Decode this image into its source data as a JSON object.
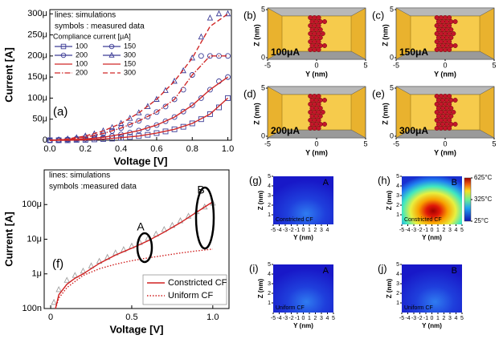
{
  "chart_data": [
    {
      "type": "line",
      "xlabel": "Voltage [V]",
      "ylabel": "Current [A]",
      "panel_label": "(a)",
      "notes": [
        "lines: simulations",
        "symbols : measured data"
      ],
      "legend_title": "Compliance current [μA]",
      "xlim": [
        0,
        1.02
      ],
      "xticks": [
        {
          "value": 0,
          "label": "0.0"
        },
        0.2,
        0.4,
        0.6,
        0.8,
        {
          "value": 1,
          "label": "1.0"
        }
      ],
      "ylim": [
        0,
        0.00031
      ],
      "yticks": [
        0,
        {
          "value": 5e-05,
          "label": "50μ"
        },
        {
          "value": 0.0001,
          "label": "100μ"
        },
        {
          "value": 0.00015,
          "label": "150μ"
        },
        {
          "value": 0.0002,
          "label": "200μ"
        },
        {
          "value": 0.00025,
          "label": "250μ"
        },
        {
          "value": 0.0003,
          "label": "300μ"
        }
      ],
      "series": [
        {
          "name": "100",
          "color": "#3c3c96",
          "style": "marker",
          "marker": "square",
          "x": [
            0,
            0.05,
            0.1,
            0.15,
            0.2,
            0.25,
            0.3,
            0.35,
            0.4,
            0.45,
            0.5,
            0.55,
            0.6,
            0.65,
            0.7,
            0.75,
            0.8,
            0.85,
            0.9,
            0.95,
            1.0
          ],
          "values": [
            0,
            0,
            0,
            1e-06,
            1e-06,
            2e-06,
            3e-06,
            4e-06,
            6e-06,
            8e-06,
            1e-05,
            1.3e-05,
            1.7e-05,
            2.1e-05,
            2.6e-05,
            3.2e-05,
            4e-05,
            5e-05,
            6.2e-05,
            7.8e-05,
            0.0001
          ]
        },
        {
          "name": "150",
          "color": "#3c3c96",
          "style": "marker",
          "marker": "circle",
          "x": [
            0,
            0.05,
            0.1,
            0.15,
            0.2,
            0.25,
            0.3,
            0.35,
            0.4,
            0.45,
            0.5,
            0.55,
            0.6,
            0.65,
            0.7,
            0.75,
            0.8,
            0.85,
            0.9,
            0.95,
            1.0
          ],
          "values": [
            0,
            0,
            1e-06,
            2e-06,
            3e-06,
            5e-06,
            7e-06,
            1e-05,
            1.4e-05,
            1.8e-05,
            2.3e-05,
            2.9e-05,
            3.6e-05,
            4.5e-05,
            5.5e-05,
            6.8e-05,
            8.3e-05,
            0.0001,
            0.00012,
            0.00014,
            0.00015
          ]
        },
        {
          "name": "200",
          "color": "#3c3c96",
          "style": "marker",
          "marker": "circle",
          "x": [
            0,
            0.05,
            0.1,
            0.15,
            0.2,
            0.25,
            0.3,
            0.35,
            0.4,
            0.45,
            0.5,
            0.55,
            0.6,
            0.65,
            0.7,
            0.75,
            0.8,
            0.85,
            0.9,
            0.95,
            1.0
          ],
          "values": [
            0,
            1e-06,
            2e-06,
            4e-06,
            7e-06,
            1.1e-05,
            1.6e-05,
            2.2e-05,
            2.9e-05,
            3.7e-05,
            4.6e-05,
            5.6e-05,
            6.7e-05,
            8e-05,
            9.7e-05,
            0.00012,
            0.000155,
            0.0002,
            0.0002,
            0.0002,
            0.0002
          ]
        },
        {
          "name": "300",
          "color": "#3c3c96",
          "style": "marker",
          "marker": "triangle",
          "x": [
            0,
            0.05,
            0.1,
            0.15,
            0.2,
            0.25,
            0.3,
            0.35,
            0.4,
            0.45,
            0.5,
            0.55,
            0.6,
            0.65,
            0.7,
            0.75,
            0.8,
            0.85,
            0.9,
            0.95,
            1.0
          ],
          "values": [
            0,
            1e-06,
            3e-06,
            6e-06,
            1e-05,
            1.5e-05,
            2.2e-05,
            3e-05,
            4e-05,
            5.2e-05,
            6.5e-05,
            8e-05,
            9.7e-05,
            0.000118,
            0.00014,
            0.000165,
            0.000195,
            0.000245,
            0.00029,
            0.0003,
            0.0003
          ]
        },
        {
          "name": "100",
          "color": "#d02828",
          "style": "solid",
          "x": [
            0,
            0.1,
            0.2,
            0.3,
            0.4,
            0.5,
            0.6,
            0.7,
            0.8,
            0.9,
            1.0
          ],
          "values": [
            0,
            0,
            1e-06,
            3e-06,
            6e-06,
            1e-05,
            1.7e-05,
            2.6e-05,
            4e-05,
            6.2e-05,
            0.0001
          ]
        },
        {
          "name": "150",
          "color": "#d02828",
          "style": "solid",
          "x": [
            0,
            0.1,
            0.2,
            0.3,
            0.4,
            0.5,
            0.6,
            0.7,
            0.8,
            0.9,
            1.0
          ],
          "values": [
            0,
            1e-06,
            3e-06,
            7e-06,
            1.4e-05,
            2.3e-05,
            3.6e-05,
            5.5e-05,
            8.3e-05,
            0.00012,
            0.00015
          ]
        },
        {
          "name": "200",
          "color": "#d02828",
          "style": "dashdot",
          "x": [
            0,
            0.1,
            0.2,
            0.3,
            0.4,
            0.5,
            0.6,
            0.7,
            0.8,
            0.9,
            1.0
          ],
          "values": [
            0,
            2e-06,
            7e-06,
            1.6e-05,
            2.9e-05,
            4.6e-05,
            6.7e-05,
            9.7e-05,
            0.000155,
            0.0002,
            0.0002
          ]
        },
        {
          "name": "300",
          "color": "#d02828",
          "style": "dash",
          "x": [
            0,
            0.1,
            0.2,
            0.3,
            0.4,
            0.5,
            0.6,
            0.7,
            0.8,
            0.9,
            1.0
          ],
          "values": [
            0,
            3e-06,
            1e-05,
            2.2e-05,
            4e-05,
            6.5e-05,
            9.7e-05,
            0.00014,
            0.000195,
            0.00027,
            0.0003
          ]
        }
      ]
    },
    {
      "type": "line",
      "log_y": true,
      "xlabel": "Voltage [V]",
      "ylabel": "Current [A]",
      "panel_label": "(f)",
      "notes": [
        "lines: simulations",
        "symbols :measured data"
      ],
      "callouts": [
        "A",
        "B"
      ],
      "xlim": [
        -0.04,
        1.1
      ],
      "xticks": [
        0,
        0.5,
        {
          "value": 1,
          "label": "1.0"
        }
      ],
      "ylim": [
        1e-07,
        0.001
      ],
      "yticks": [
        {
          "value": 1e-07,
          "label": "100n"
        },
        {
          "value": 1e-06,
          "label": "1μ"
        },
        {
          "value": 1e-05,
          "label": "10μ"
        },
        {
          "value": 0.0001,
          "label": "100μ"
        }
      ],
      "series": [
        {
          "color": "#a0a0a0",
          "style": "marker",
          "marker": "triangle",
          "x": [
            0.02,
            0.05,
            0.1,
            0.15,
            0.2,
            0.25,
            0.3,
            0.35,
            0.4,
            0.45,
            0.5,
            0.55,
            0.6,
            0.65,
            0.7,
            0.75,
            0.8,
            0.85,
            0.9,
            0.95,
            1.0
          ],
          "values": [
            1.5e-07,
            3.5e-07,
            6.5e-07,
            9e-07,
            1.2e-06,
            1.7e-06,
            2.3e-06,
            3e-06,
            4e-06,
            5e-06,
            6.3e-06,
            8e-06,
            1.05e-05,
            1.4e-05,
            1.9e-05,
            2.5e-05,
            3.4e-05,
            4.6e-05,
            6.2e-05,
            8.5e-05,
            0.00011
          ]
        },
        {
          "name": "Constricted CF",
          "color": "#d02020",
          "style": "solid",
          "x": [
            0.03,
            0.05,
            0.1,
            0.15,
            0.2,
            0.3,
            0.4,
            0.5,
            0.6,
            0.7,
            0.8,
            0.9,
            1.0
          ],
          "values": [
            1e-07,
            2.5e-07,
            5e-07,
            7.5e-07,
            1e-06,
            2e-06,
            3.5e-06,
            5.5e-06,
            9e-06,
            1.6e-05,
            3e-05,
            6e-05,
            0.00012
          ]
        },
        {
          "name": "Uniform CF",
          "color": "#d02020",
          "style": "dot",
          "x": [
            0.03,
            0.05,
            0.1,
            0.15,
            0.2,
            0.3,
            0.4,
            0.5,
            0.6,
            0.7,
            0.8,
            0.9,
            1.0
          ],
          "values": [
            1e-07,
            2e-07,
            4e-07,
            6e-07,
            9e-07,
            1.4e-06,
            1.9e-06,
            2.4e-06,
            2.9e-06,
            3.4e-06,
            4e-06,
            4.6e-06,
            5.2e-06
          ]
        }
      ]
    },
    {
      "type": "image",
      "panel_label": "(b)",
      "annotation": "100μA",
      "xlabel": "Y (nm)",
      "ylabel": "Z (nm)",
      "xlim": [
        -5,
        5
      ],
      "xticks": [
        -5,
        0,
        5
      ],
      "ylim": [
        0,
        5
      ],
      "yticks": [
        0,
        5
      ]
    },
    {
      "type": "image",
      "panel_label": "(c)",
      "annotation": "150μA",
      "xlabel": "Y (nm)",
      "ylabel": "Z (nm)",
      "xlim": [
        -5,
        5
      ],
      "xticks": [
        -5,
        0,
        5
      ],
      "ylim": [
        0,
        5
      ],
      "yticks": [
        0,
        5
      ]
    },
    {
      "type": "image",
      "panel_label": "(d)",
      "annotation": "200μA",
      "xlabel": "Y (nm)",
      "ylabel": "Z (nm)",
      "xlim": [
        -5,
        5
      ],
      "xticks": [
        -5,
        0,
        5
      ],
      "ylim": [
        0,
        5
      ],
      "yticks": [
        0,
        5
      ]
    },
    {
      "type": "image",
      "panel_label": "(e)",
      "annotation": "300μA",
      "xlabel": "Y (nm)",
      "ylabel": "Z (nm)",
      "xlim": [
        -5,
        5
      ],
      "xticks": [
        -5,
        0,
        5
      ],
      "ylim": [
        0,
        5
      ],
      "yticks": [
        0,
        5
      ]
    },
    {
      "type": "heatmap",
      "panel_label": "(g)",
      "corner_label": "A",
      "annotation": "Constricted CF",
      "xlabel": "Y (nm)",
      "ylabel": "Z (nm)",
      "xlim": [
        -5,
        5
      ],
      "xticks": [
        -5,
        -4,
        -3,
        -2,
        -1,
        0,
        1,
        2,
        3,
        4
      ],
      "ylim": [
        0,
        5
      ],
      "yticks": [
        1,
        2,
        3,
        4,
        5
      ]
    },
    {
      "type": "heatmap",
      "panel_label": "(h)",
      "corner_label": "B",
      "annotation": "Constricted CF",
      "xlabel": "Y (nm)",
      "ylabel": "Z (nm)",
      "xlim": [
        -5,
        5
      ],
      "xticks": [
        -5,
        -4,
        -3,
        -2,
        -1,
        0,
        1,
        2,
        3,
        4,
        5
      ],
      "ylim": [
        0,
        5
      ],
      "yticks": [
        1,
        2,
        3,
        4,
        5
      ],
      "colorbar": {
        "lim": [
          25,
          625
        ],
        "ticks": [
          {
            "value": 625,
            "label": "625°C"
          },
          {
            "value": 325,
            "label": "325°C"
          },
          {
            "value": 25,
            "label": "25°C"
          }
        ]
      }
    },
    {
      "type": "heatmap",
      "panel_label": "(i)",
      "corner_label": "A",
      "annotation": "Uniform CF",
      "xlabel": "Y (nm)",
      "ylabel": "Z (nm)",
      "xlim": [
        -5,
        5
      ],
      "xticks": [
        -5,
        -4,
        -3,
        -2,
        -1,
        0,
        1,
        2,
        3,
        4,
        5
      ],
      "ylim": [
        0,
        5
      ],
      "yticks": [
        1,
        2,
        3,
        4,
        5
      ]
    },
    {
      "type": "heatmap",
      "panel_label": "(j)",
      "corner_label": "B",
      "annotation": "Uniform CF",
      "xlabel": "Y (nm)",
      "ylabel": "Z (nm)",
      "xlim": [
        -5,
        5
      ],
      "xticks": [
        -5,
        -4,
        -3,
        -2,
        -1,
        0,
        1,
        2,
        3,
        4,
        5
      ],
      "ylim": [
        0,
        5
      ],
      "yticks": [
        1,
        2,
        3,
        4,
        5
      ]
    }
  ]
}
